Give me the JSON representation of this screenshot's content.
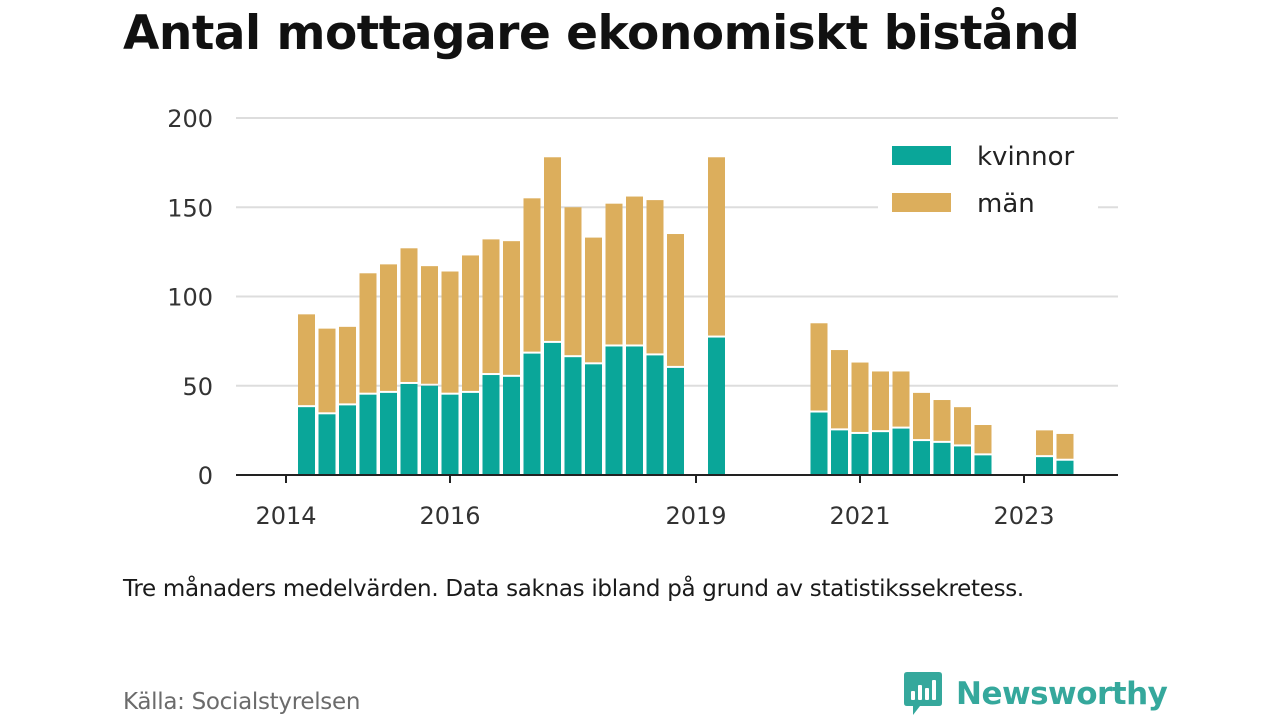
{
  "title": "Antal mottagare ekonomiskt bistånd",
  "note": "Tre månaders medelvärden. Data saknas ibland på grund av statistikssekretess.",
  "source": "Källa: Socialstyrelsen",
  "brand": {
    "name": "Newsworthy",
    "icon": "newsworthy-logo-icon",
    "color": "#35a89c"
  },
  "chart_data": {
    "type": "bar",
    "stacked": true,
    "x_unit": "quarter",
    "x_ticks": [
      "2014",
      "2016",
      "2019",
      "2021",
      "2023"
    ],
    "y_ticks": [
      "0",
      "50",
      "100",
      "150",
      "200"
    ],
    "ylim": [
      0,
      200
    ],
    "grid": true,
    "legend_position": "top-right",
    "categories": [
      "2014 Q2",
      "2014 Q3",
      "2014 Q4",
      "2015 Q1",
      "2015 Q2",
      "2015 Q3",
      "2015 Q4",
      "2016 Q1",
      "2016 Q2",
      "2016 Q3",
      "2016 Q4",
      "2017 Q1",
      "2017 Q2",
      "2017 Q3",
      "2017 Q4",
      "2018 Q1",
      "2018 Q2",
      "2018 Q3",
      "2018 Q4",
      "2019 Q1",
      "2019 Q2",
      "2019 Q3",
      "2019 Q4",
      "2020 Q1",
      "2020 Q2",
      "2020 Q3",
      "2020 Q4",
      "2021 Q1",
      "2021 Q2",
      "2021 Q3",
      "2021 Q4",
      "2022 Q1",
      "2022 Q2",
      "2022 Q3",
      "2022 Q4",
      "2023 Q1",
      "2023 Q2",
      "2023 Q3"
    ],
    "series": [
      {
        "name": "kvinnor",
        "color": "#0aa699",
        "values": [
          38,
          34,
          39,
          45,
          46,
          51,
          50,
          45,
          46,
          56,
          55,
          68,
          74,
          66,
          62,
          72,
          72,
          67,
          60,
          null,
          77,
          null,
          null,
          null,
          null,
          35,
          25,
          23,
          24,
          26,
          19,
          18,
          16,
          11,
          null,
          null,
          10,
          8
        ]
      },
      {
        "name": "män",
        "color": "#dcae5c",
        "values": [
          52,
          48,
          44,
          68,
          72,
          76,
          67,
          69,
          77,
          76,
          76,
          87,
          104,
          84,
          71,
          80,
          84,
          87,
          75,
          null,
          101,
          null,
          null,
          null,
          null,
          50,
          45,
          40,
          34,
          32,
          27,
          24,
          22,
          17,
          null,
          null,
          15,
          15
        ]
      }
    ]
  }
}
